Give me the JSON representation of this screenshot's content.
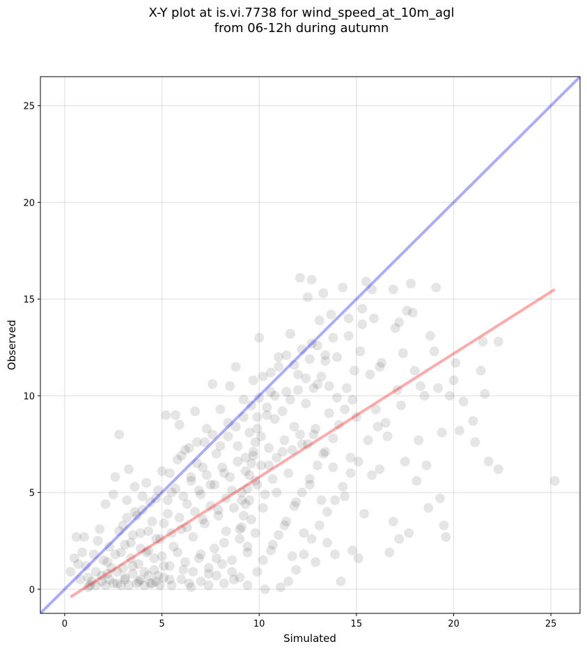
{
  "chart_data": {
    "type": "scatter",
    "title": "X-Y plot at is.vi.7738 for wind_speed_at_10m_agl",
    "subtitle": "from 06-12h during autumn",
    "xlabel": "Simulated",
    "ylabel": "Observed",
    "xlim": [
      -1.25,
      26.5
    ],
    "ylim": [
      -1.25,
      26.5
    ],
    "xticks": [
      0,
      5,
      10,
      15,
      20,
      25
    ],
    "yticks": [
      0,
      5,
      10,
      15,
      20,
      25
    ],
    "grid": true,
    "point_color": "#000000",
    "point_alpha": 0.1,
    "reference_lines": [
      {
        "kind": "one-to-one",
        "color": "#0000ff",
        "points": [
          [
            -1.25,
            -1.25
          ],
          [
            26.5,
            26.5
          ]
        ]
      },
      {
        "kind": "regression",
        "color": "#ff0000",
        "points": [
          [
            0.3,
            -0.4
          ],
          [
            25.2,
            15.5
          ]
        ]
      }
    ],
    "points": [
      [
        0.3,
        0.9
      ],
      [
        0.5,
        1.6
      ],
      [
        0.6,
        2.7
      ],
      [
        0.7,
        1.3
      ],
      [
        0.8,
        0.5
      ],
      [
        0.9,
        1.9
      ],
      [
        1.0,
        2.7
      ],
      [
        1.1,
        1.2
      ],
      [
        1.2,
        0.6
      ],
      [
        1.3,
        0.2
      ],
      [
        1.5,
        1.8
      ],
      [
        1.6,
        0.9
      ],
      [
        1.7,
        2.5
      ],
      [
        1.8,
        3.1
      ],
      [
        1.9,
        0.4
      ],
      [
        2.0,
        1.5
      ],
      [
        2.1,
        4.4
      ],
      [
        2.2,
        0.8
      ],
      [
        2.3,
        2.2
      ],
      [
        2.4,
        1.1
      ],
      [
        2.5,
        4.9
      ],
      [
        2.6,
        5.8
      ],
      [
        2.7,
        0.3
      ],
      [
        2.8,
        8.0
      ],
      [
        2.9,
        1.9
      ],
      [
        3.0,
        3.3
      ],
      [
        3.1,
        0.5
      ],
      [
        3.2,
        4.6
      ],
      [
        3.3,
        6.2
      ],
      [
        3.4,
        2.4
      ],
      [
        3.5,
        1.2
      ],
      [
        3.6,
        5.3
      ],
      [
        3.7,
        3.8
      ],
      [
        3.8,
        0.4
      ],
      [
        3.9,
        2.9
      ],
      [
        4.0,
        4.1
      ],
      [
        4.1,
        0.9
      ],
      [
        4.2,
        5.5
      ],
      [
        4.3,
        2.0
      ],
      [
        4.4,
        0.3
      ],
      [
        4.5,
        3.5
      ],
      [
        4.6,
        1.6
      ],
      [
        4.7,
        4.7
      ],
      [
        4.8,
        0.7
      ],
      [
        4.9,
        2.6
      ],
      [
        5.0,
        6.1
      ],
      [
        5.1,
        1.2
      ],
      [
        5.2,
        9.0
      ],
      [
        5.3,
        3.9
      ],
      [
        5.4,
        0.5
      ],
      [
        5.5,
        5.0
      ],
      [
        5.6,
        2.2
      ],
      [
        5.7,
        9.0
      ],
      [
        5.8,
        6.7
      ],
      [
        5.9,
        8.5
      ],
      [
        6.0,
        3.1
      ],
      [
        6.1,
        1.0
      ],
      [
        6.2,
        7.2
      ],
      [
        6.3,
        4.4
      ],
      [
        6.4,
        0.3
      ],
      [
        6.5,
        5.8
      ],
      [
        6.6,
        2.7
      ],
      [
        6.7,
        9.2
      ],
      [
        6.8,
        7.6
      ],
      [
        6.9,
        1.6
      ],
      [
        7.0,
        4.9
      ],
      [
        7.1,
        6.3
      ],
      [
        7.2,
        3.4
      ],
      [
        7.3,
        8.3
      ],
      [
        7.4,
        0.8
      ],
      [
        7.5,
        5.4
      ],
      [
        7.6,
        10.6
      ],
      [
        7.7,
        2.1
      ],
      [
        7.8,
        7.0
      ],
      [
        7.9,
        4.1
      ],
      [
        8.0,
        9.3
      ],
      [
        8.1,
        1.3
      ],
      [
        8.2,
        6.0
      ],
      [
        8.3,
        3.0
      ],
      [
        8.4,
        8.6
      ],
      [
        8.5,
        10.5
      ],
      [
        8.6,
        5.1
      ],
      [
        8.7,
        0.5
      ],
      [
        8.8,
        11.5
      ],
      [
        8.9,
        7.4
      ],
      [
        9.0,
        2.6
      ],
      [
        9.1,
        4.6
      ],
      [
        9.2,
        9.8
      ],
      [
        9.3,
        6.8
      ],
      [
        9.4,
        1.9
      ],
      [
        9.5,
        8.1
      ],
      [
        9.6,
        3.6
      ],
      [
        9.7,
        10.8
      ],
      [
        9.8,
        5.6
      ],
      [
        9.9,
        0.9
      ],
      [
        10.0,
        13.0
      ],
      [
        10.1,
        7.9
      ],
      [
        10.2,
        4.2
      ],
      [
        10.3,
        0.0
      ],
      [
        10.4,
        9.0
      ],
      [
        10.5,
        6.4
      ],
      [
        10.6,
        11.2
      ],
      [
        10.7,
        2.3
      ],
      [
        10.8,
        8.8
      ],
      [
        10.9,
        5.0
      ],
      [
        11.0,
        12.0
      ],
      [
        11.1,
        0.1
      ],
      [
        11.2,
        7.1
      ],
      [
        11.3,
        3.3
      ],
      [
        11.4,
        10.2
      ],
      [
        11.5,
        6.0
      ],
      [
        11.6,
        13.2
      ],
      [
        11.7,
        1.7
      ],
      [
        11.8,
        8.4
      ],
      [
        11.9,
        4.5
      ],
      [
        12.0,
        11.1
      ],
      [
        12.1,
        16.1
      ],
      [
        12.2,
        7.5
      ],
      [
        12.3,
        2.9
      ],
      [
        12.4,
        9.6
      ],
      [
        12.5,
        15.1
      ],
      [
        12.6,
        5.4
      ],
      [
        12.7,
        12.7
      ],
      [
        12.8,
        8.0
      ],
      [
        12.9,
        1.4
      ],
      [
        13.0,
        10.6
      ],
      [
        13.1,
        13.9
      ],
      [
        13.2,
        4.6
      ],
      [
        13.3,
        7.0
      ],
      [
        13.4,
        11.8
      ],
      [
        13.5,
        2.4
      ],
      [
        13.6,
        9.1
      ],
      [
        13.7,
        14.2
      ],
      [
        13.8,
        6.3
      ],
      [
        13.9,
        1.8
      ],
      [
        14.0,
        12.0
      ],
      [
        14.1,
        8.5
      ],
      [
        14.2,
        0.4
      ],
      [
        14.3,
        15.6
      ],
      [
        14.4,
        4.8
      ],
      [
        14.5,
        10.4
      ],
      [
        14.6,
        13.1
      ],
      [
        14.7,
        6.8
      ],
      [
        14.8,
        2.0
      ],
      [
        14.9,
        11.3
      ],
      [
        15.0,
        8.9
      ],
      [
        15.1,
        1.6
      ],
      [
        15.2,
        12.3
      ],
      [
        15.3,
        14.5
      ],
      [
        15.4,
        3.9
      ],
      [
        15.5,
        15.9
      ],
      [
        15.6,
        7.7
      ],
      [
        15.7,
        11.1
      ],
      [
        15.8,
        5.9
      ],
      [
        15.9,
        14.0
      ],
      [
        16.0,
        9.3
      ],
      [
        16.1,
        8.4
      ],
      [
        16.2,
        6.2
      ],
      [
        16.3,
        11.7
      ],
      [
        16.5,
        8.6
      ],
      [
        16.6,
        7.9
      ],
      [
        16.7,
        1.9
      ],
      [
        16.9,
        3.5
      ],
      [
        17.0,
        13.5
      ],
      [
        17.1,
        10.3
      ],
      [
        17.2,
        2.6
      ],
      [
        17.3,
        9.5
      ],
      [
        17.4,
        12.2
      ],
      [
        17.5,
        6.6
      ],
      [
        17.6,
        14.4
      ],
      [
        17.7,
        2.9
      ],
      [
        17.8,
        15.8
      ],
      [
        17.9,
        14.3
      ],
      [
        18.0,
        11.3
      ],
      [
        18.1,
        5.6
      ],
      [
        18.2,
        7.7
      ],
      [
        18.3,
        10.5
      ],
      [
        18.5,
        10.0
      ],
      [
        18.6,
        6.4
      ],
      [
        18.7,
        4.2
      ],
      [
        18.8,
        13.1
      ],
      [
        19.0,
        12.3
      ],
      [
        19.1,
        15.6
      ],
      [
        19.2,
        10.4
      ],
      [
        19.3,
        4.7
      ],
      [
        19.4,
        8.1
      ],
      [
        19.5,
        3.3
      ],
      [
        19.6,
        2.7
      ],
      [
        19.8,
        10.0
      ],
      [
        20.0,
        10.8
      ],
      [
        20.1,
        11.7
      ],
      [
        20.3,
        8.2
      ],
      [
        20.5,
        9.7
      ],
      [
        21.0,
        8.7
      ],
      [
        21.1,
        7.6
      ],
      [
        21.4,
        11.3
      ],
      [
        21.5,
        12.8
      ],
      [
        21.6,
        10.1
      ],
      [
        21.8,
        6.6
      ],
      [
        22.3,
        12.8
      ],
      [
        22.3,
        6.2
      ],
      [
        25.2,
        5.6
      ],
      [
        16.9,
        15.5
      ],
      [
        17.2,
        13.8
      ],
      [
        16.2,
        11.5
      ],
      [
        15.8,
        15.5
      ],
      [
        14.6,
        14.0
      ],
      [
        12.7,
        16.0
      ],
      [
        13.3,
        15.3
      ],
      [
        15.3,
        13.7
      ],
      [
        1.2,
        0.1
      ],
      [
        1.4,
        0.4
      ],
      [
        1.6,
        0.2
      ],
      [
        1.9,
        0.7
      ],
      [
        2.1,
        0.2
      ],
      [
        2.3,
        0.5
      ],
      [
        2.5,
        0.3
      ],
      [
        2.7,
        0.9
      ],
      [
        2.9,
        0.2
      ],
      [
        3.1,
        0.6
      ],
      [
        3.3,
        0.2
      ],
      [
        3.5,
        0.8
      ],
      [
        3.7,
        0.3
      ],
      [
        3.9,
        0.5
      ],
      [
        4.1,
        0.2
      ],
      [
        4.3,
        0.7
      ],
      [
        4.5,
        0.3
      ],
      [
        4.7,
        0.4
      ],
      [
        4.9,
        0.2
      ],
      [
        5.1,
        0.6
      ],
      [
        2.2,
        1.4
      ],
      [
        2.6,
        1.8
      ],
      [
        3.0,
        1.1
      ],
      [
        3.4,
        1.6
      ],
      [
        3.8,
        1.3
      ],
      [
        4.2,
        1.9
      ],
      [
        4.6,
        1.0
      ],
      [
        5.0,
        1.7
      ],
      [
        5.4,
        1.2
      ],
      [
        5.8,
        1.9
      ],
      [
        6.2,
        1.4
      ],
      [
        6.6,
        0.9
      ],
      [
        7.0,
        1.8
      ],
      [
        7.4,
        1.1
      ],
      [
        7.8,
        1.6
      ],
      [
        8.2,
        2.4
      ],
      [
        8.6,
        1.5
      ],
      [
        9.0,
        3.1
      ],
      [
        9.4,
        2.2
      ],
      [
        9.8,
        2.9
      ],
      [
        3.1,
        2.3
      ],
      [
        3.5,
        2.8
      ],
      [
        3.9,
        2.1
      ],
      [
        4.3,
        3.0
      ],
      [
        4.7,
        2.6
      ],
      [
        5.1,
        3.4
      ],
      [
        5.5,
        2.9
      ],
      [
        5.9,
        3.7
      ],
      [
        6.3,
        3.2
      ],
      [
        6.7,
        4.0
      ],
      [
        7.1,
        3.6
      ],
      [
        7.5,
        4.3
      ],
      [
        7.9,
        3.8
      ],
      [
        8.3,
        4.7
      ],
      [
        8.7,
        4.2
      ],
      [
        9.1,
        5.0
      ],
      [
        9.5,
        4.6
      ],
      [
        9.9,
        5.4
      ],
      [
        10.3,
        4.9
      ],
      [
        10.7,
        5.7
      ],
      [
        5.3,
        4.6
      ],
      [
        5.7,
        5.2
      ],
      [
        6.1,
        4.8
      ],
      [
        6.5,
        5.6
      ],
      [
        6.9,
        5.1
      ],
      [
        7.3,
        5.9
      ],
      [
        7.7,
        5.4
      ],
      [
        8.1,
        6.3
      ],
      [
        8.5,
        5.8
      ],
      [
        8.9,
        6.6
      ],
      [
        9.3,
        6.1
      ],
      [
        9.7,
        6.9
      ],
      [
        10.1,
        6.4
      ],
      [
        10.5,
        7.3
      ],
      [
        10.9,
        6.8
      ],
      [
        11.3,
        7.7
      ],
      [
        11.7,
        7.2
      ],
      [
        12.1,
        8.0
      ],
      [
        12.5,
        7.5
      ],
      [
        12.9,
        8.3
      ],
      [
        7.2,
        7.6
      ],
      [
        7.6,
        8.0
      ],
      [
        8.0,
        7.4
      ],
      [
        8.4,
        7.9
      ],
      [
        8.8,
        8.4
      ],
      [
        9.2,
        8.9
      ],
      [
        9.6,
        9.5
      ],
      [
        10.0,
        9.9
      ],
      [
        10.4,
        9.4
      ],
      [
        10.8,
        10.0
      ],
      [
        11.2,
        9.2
      ],
      [
        11.6,
        9.8
      ],
      [
        12.0,
        10.3
      ],
      [
        12.4,
        10.9
      ],
      [
        12.8,
        10.4
      ],
      [
        13.2,
        11.0
      ],
      [
        13.6,
        10.5
      ],
      [
        14.0,
        9.9
      ],
      [
        14.4,
        9.3
      ],
      [
        14.8,
        9.8
      ],
      [
        10.2,
        11.0
      ],
      [
        10.6,
        10.2
      ],
      [
        11.0,
        11.5
      ],
      [
        11.4,
        12.1
      ],
      [
        11.8,
        11.6
      ],
      [
        12.2,
        12.4
      ],
      [
        12.6,
        11.9
      ],
      [
        13.0,
        12.6
      ],
      [
        13.4,
        12.1
      ],
      [
        13.8,
        13.0
      ],
      [
        6.0,
        6.9
      ],
      [
        6.4,
        7.3
      ],
      [
        6.8,
        6.5
      ],
      [
        5.4,
        6.0
      ],
      [
        4.8,
        5.1
      ],
      [
        4.4,
        4.5
      ],
      [
        4.0,
        4.8
      ],
      [
        3.6,
        4.0
      ],
      [
        3.2,
        3.7
      ],
      [
        2.8,
        3.0
      ],
      [
        7.0,
        0.4
      ],
      [
        7.4,
        0.2
      ],
      [
        7.8,
        0.7
      ],
      [
        8.2,
        0.3
      ],
      [
        8.6,
        0.9
      ],
      [
        9.0,
        0.6
      ],
      [
        9.4,
        0.2
      ],
      [
        5.5,
        0.2
      ],
      [
        6.0,
        0.5
      ],
      [
        6.5,
        0.1
      ],
      [
        11.5,
        0.4
      ],
      [
        11.9,
        1.0
      ],
      [
        12.3,
        1.8
      ],
      [
        12.7,
        2.6
      ],
      [
        13.1,
        3.3
      ],
      [
        13.5,
        4.0
      ],
      [
        13.9,
        4.6
      ],
      [
        14.3,
        5.3
      ],
      [
        14.7,
        6.0
      ],
      [
        15.1,
        6.6
      ],
      [
        10.2,
        1.5
      ],
      [
        10.6,
        2.0
      ],
      [
        11.0,
        2.8
      ],
      [
        11.4,
        3.5
      ],
      [
        11.8,
        4.3
      ],
      [
        12.2,
        5.0
      ],
      [
        12.6,
        5.7
      ],
      [
        13.0,
        6.4
      ],
      [
        13.4,
        7.1
      ],
      [
        13.8,
        7.8
      ],
      [
        9.9,
        8.9
      ],
      [
        9.9,
        8.3
      ],
      [
        9.8,
        7.6
      ],
      [
        9.7,
        7.1
      ],
      [
        9.6,
        6.5
      ],
      [
        9.5,
        5.9
      ],
      [
        9.4,
        5.2
      ],
      [
        9.3,
        4.4
      ],
      [
        9.2,
        3.8
      ],
      [
        9.1,
        3.2
      ]
    ]
  }
}
